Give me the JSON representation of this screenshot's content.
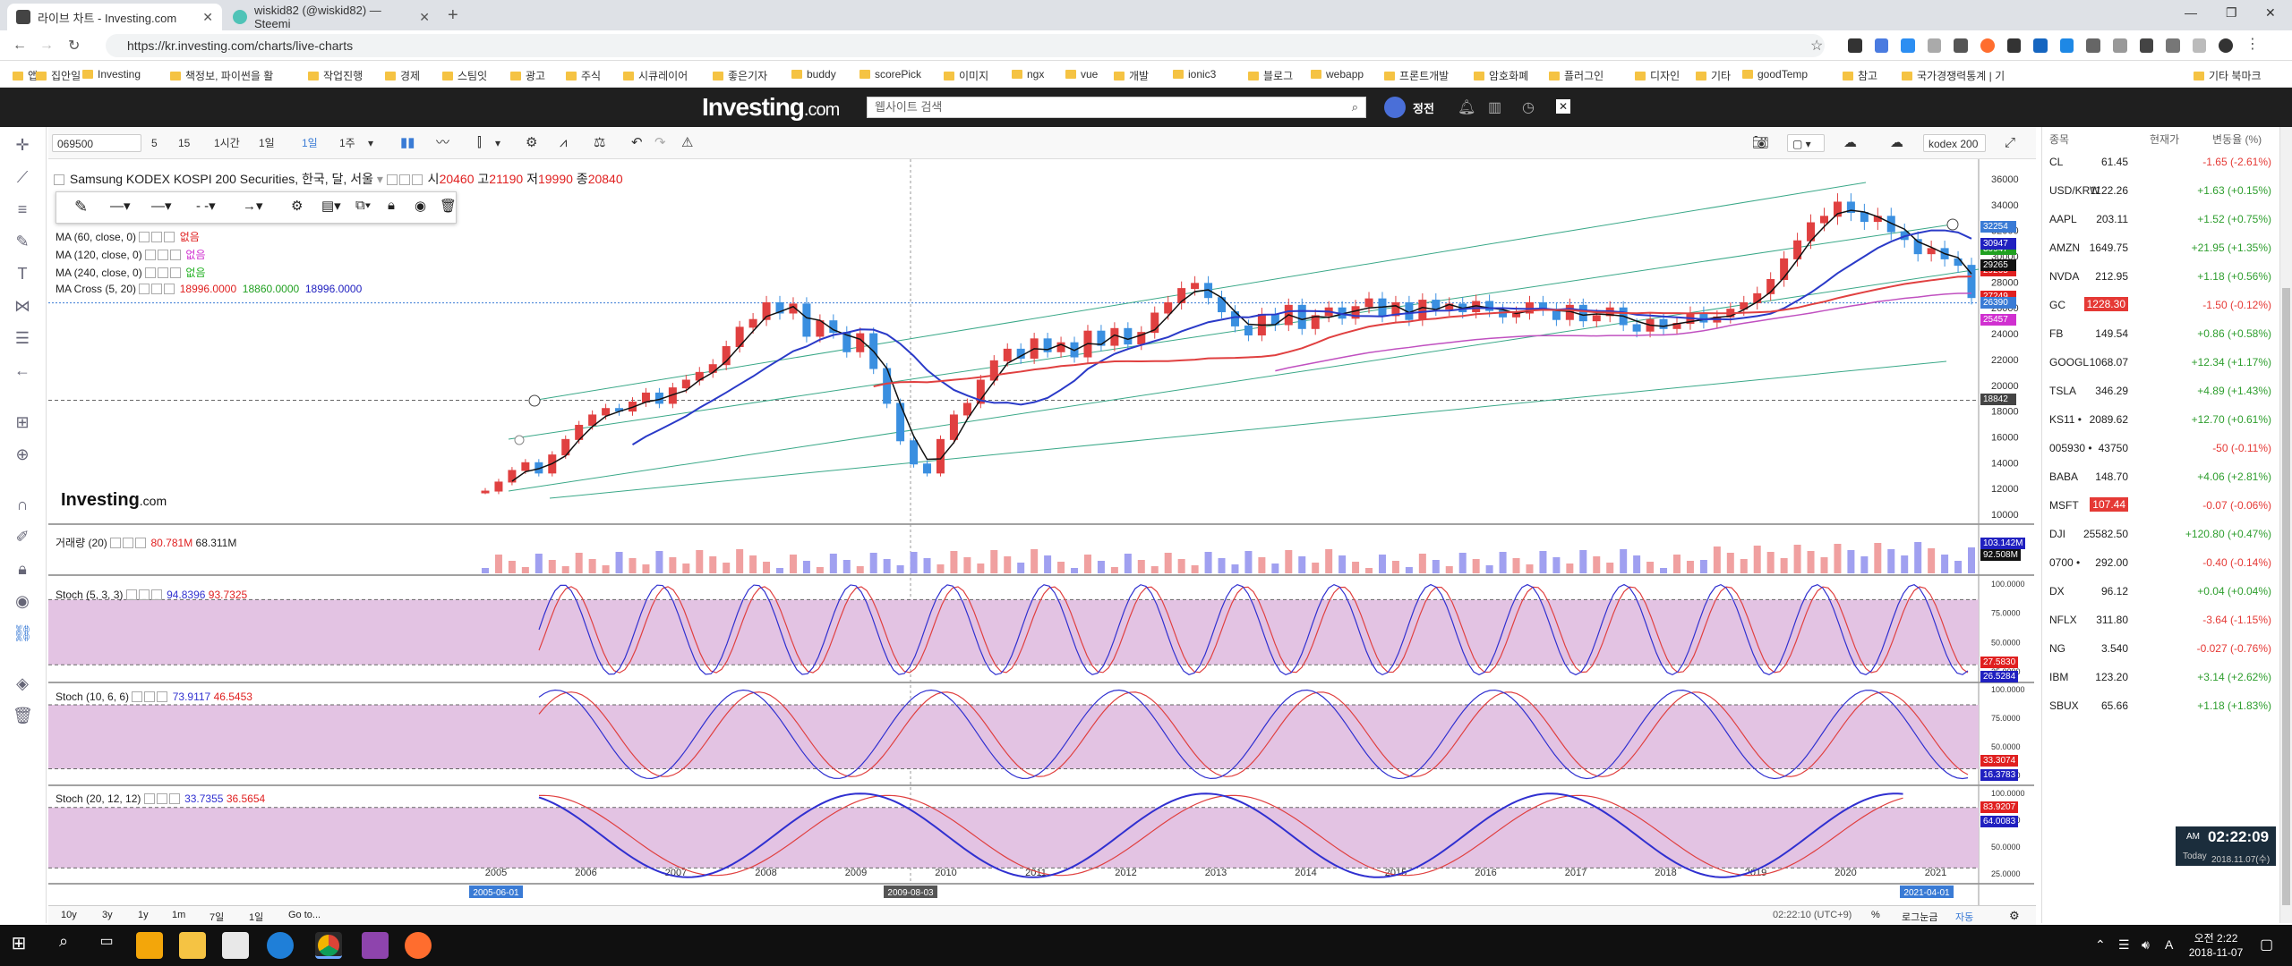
{
  "browser": {
    "tabs": [
      {
        "title": "라이브 차트 - Investing.com",
        "favicon_color": "#444"
      },
      {
        "title": "wiskid82 (@wiskid82) — Steemi",
        "favicon_color": "#4fc3b7"
      }
    ],
    "url": "https://kr.investing.com/charts/live-charts",
    "bookmarks": [
      "앱",
      "집안일",
      "Investing",
      "책정보, 파이썬을 활",
      "작업진행",
      "경제",
      "스팀잇",
      "광고",
      "주식",
      "시큐레이어",
      "좋은기자",
      "buddy",
      "scorePick",
      "이미지",
      "ngx",
      "vue",
      "개발",
      "ionic3",
      "블로그",
      "webapp",
      "프론트개발",
      "암호화폐",
      "플러그인",
      "디자인",
      "기타",
      "goodTemp",
      "참고",
      "국가경쟁력통계 | 기",
      "기타 북마크"
    ]
  },
  "site": {
    "logo": "Investing",
    "logo_suffix": ".com",
    "search_placeholder": "웹사이트 검색",
    "user": "정전"
  },
  "toolbar": {
    "symbol": "069500",
    "intervals": [
      "5",
      "15",
      "1시간",
      "1일",
      "1일",
      "1주"
    ],
    "compare_label": "kodex 200"
  },
  "chart": {
    "title": "Samsung KODEX KOSPI 200 Securities, 한국, 달, 서울",
    "ohlc": {
      "open_label": "시",
      "open": "20460",
      "high_label": "고",
      "high": "21190",
      "low_label": "저",
      "low": "19990",
      "close_label": "종",
      "close": "20840"
    },
    "indicators": [
      {
        "label": "MA (60, close, 0)",
        "value": "없음",
        "color": "#e02020"
      },
      {
        "label": "MA (120, close, 0)",
        "value": "없음",
        "color": "#d030d0"
      },
      {
        "label": "MA (240, close, 0)",
        "value": "없음",
        "color": "#20b020"
      },
      {
        "label": "MA Cross (5, 20)",
        "values": [
          "18996.0000",
          "18860.0000",
          "18996.0000"
        ],
        "colors": [
          "#e02020",
          "#20a020",
          "#2020c0"
        ]
      }
    ],
    "watermark": "Investing",
    "watermark_suffix": ".com",
    "price_axis": [
      "36000",
      "34000",
      "32000",
      "30000",
      "28000",
      "26000",
      "24000",
      "22000",
      "20000",
      "18000",
      "16000",
      "14000",
      "12000",
      "10000"
    ],
    "price_tags": [
      {
        "value": "32254",
        "color": "#3a7bd5"
      },
      {
        "value": "30947",
        "color": "#20a020"
      },
      {
        "value": "30947",
        "color": "#2020c0"
      },
      {
        "value": "29265",
        "color": "#e02020"
      },
      {
        "value": "29265",
        "color": "#111111"
      },
      {
        "value": "27249",
        "color": "#e02020"
      },
      {
        "value": "26390",
        "color": "#3a7bd5"
      },
      {
        "value": "25457",
        "color": "#d030d0"
      },
      {
        "value": "18842",
        "color": "#444444"
      }
    ],
    "volume": {
      "label": "거래량 (20)",
      "v1": "80.781M",
      "v2": "68.311M",
      "tags": [
        "103.142M",
        "92.508M"
      ]
    },
    "stochs": [
      {
        "label": "Stoch (5, 3, 3)",
        "k": "94.8396",
        "d": "93.7325",
        "tags": [
          "27.5830",
          "26.5284"
        ]
      },
      {
        "label": "Stoch (10, 6, 6)",
        "k": "73.9117",
        "d": "46.5453",
        "tags": [
          "33.3074",
          "16.3783"
        ]
      },
      {
        "label": "Stoch (20, 12, 12)",
        "k": "33.7355",
        "d": "36.5654",
        "tags": [
          "83.9207",
          "64.0083"
        ]
      }
    ],
    "stoch_axis": [
      "100.0000",
      "75.0000",
      "50.0000",
      "25.0000"
    ],
    "x_axis": [
      "2005",
      "2006",
      "2007",
      "2008",
      "2009",
      "2010",
      "2011",
      "2012",
      "2013",
      "2014",
      "2015",
      "2016",
      "2017",
      "2018",
      "2019",
      "2020",
      "2021"
    ],
    "cursor_date_left": "2005-06-01",
    "cursor_date": "2009-08-03",
    "cursor_date_right": "2021-04-01",
    "bottom_ranges": [
      "10y",
      "3y",
      "1y",
      "1m",
      "7일",
      "1일",
      "Go to..."
    ],
    "bottom_time": "02:22:10 (UTC+9)",
    "bottom_right": [
      "%",
      "로그눈금",
      "자동"
    ]
  },
  "watchlist": {
    "headers": [
      "종목",
      "현재가",
      "변동율 (%)"
    ],
    "rows": [
      {
        "sym": "CL",
        "price": "61.45",
        "chg": "-1.65 (-2.61%)",
        "dir": "down"
      },
      {
        "sym": "USD/KRW",
        "price": "1122.26",
        "chg": "+1.63 (+0.15%)",
        "dir": "up"
      },
      {
        "sym": "AAPL",
        "price": "203.11",
        "chg": "+1.52 (+0.75%)",
        "dir": "up"
      },
      {
        "sym": "AMZN",
        "price": "1649.75",
        "chg": "+21.95 (+1.35%)",
        "dir": "up"
      },
      {
        "sym": "NVDA",
        "price": "212.95",
        "chg": "+1.18 (+0.56%)",
        "dir": "up"
      },
      {
        "sym": "GC",
        "price": "1228.30",
        "chg": "-1.50 (-0.12%)",
        "dir": "down",
        "hl": "#e53935"
      },
      {
        "sym": "FB",
        "price": "149.54",
        "chg": "+0.86 (+0.58%)",
        "dir": "up"
      },
      {
        "sym": "GOOGL",
        "price": "1068.07",
        "chg": "+12.34 (+1.17%)",
        "dir": "up"
      },
      {
        "sym": "TSLA",
        "price": "346.29",
        "chg": "+4.89 (+1.43%)",
        "dir": "up"
      },
      {
        "sym": "KS11 •",
        "price": "2089.62",
        "chg": "+12.70 (+0.61%)",
        "dir": "up"
      },
      {
        "sym": "005930 •",
        "price": "43750",
        "chg": "-50 (-0.11%)",
        "dir": "down"
      },
      {
        "sym": "BABA",
        "price": "148.70",
        "chg": "+4.06 (+2.81%)",
        "dir": "up"
      },
      {
        "sym": "MSFT",
        "price": "107.44",
        "chg": "-0.07 (-0.06%)",
        "dir": "down",
        "hl": "#e53935"
      },
      {
        "sym": "DJI",
        "price": "25582.50",
        "chg": "+120.80 (+0.47%)",
        "dir": "up"
      },
      {
        "sym": "0700 •",
        "price": "292.00",
        "chg": "-0.40 (-0.14%)",
        "dir": "down"
      },
      {
        "sym": "DX",
        "price": "96.12",
        "chg": "+0.04 (+0.04%)",
        "dir": "up"
      },
      {
        "sym": "NFLX",
        "price": "311.80",
        "chg": "-3.64 (-1.15%)",
        "dir": "down"
      },
      {
        "sym": "NG",
        "price": "3.540",
        "chg": "-0.027 (-0.76%)",
        "dir": "down"
      },
      {
        "sym": "IBM",
        "price": "123.20",
        "chg": "+3.14 (+2.62%)",
        "dir": "up"
      },
      {
        "sym": "SBUX",
        "price": "65.66",
        "chg": "+1.18 (+1.83%)",
        "dir": "up"
      }
    ]
  },
  "clock_widget": {
    "ampm": "AM",
    "time": "02:22:09",
    "today_label": "Today",
    "date": "2018.11.07(수)"
  },
  "taskbar": {
    "time": "오전 2:22",
    "date": "2018-11-07"
  },
  "colors": {
    "up": "#2e9e2e",
    "down": "#e53935",
    "candle_up": "#e04040",
    "candle_down": "#3a8fe0",
    "stoch_fill": "#e3c3e3",
    "stoch_k": "#3030d0",
    "stoch_d": "#e04040"
  }
}
